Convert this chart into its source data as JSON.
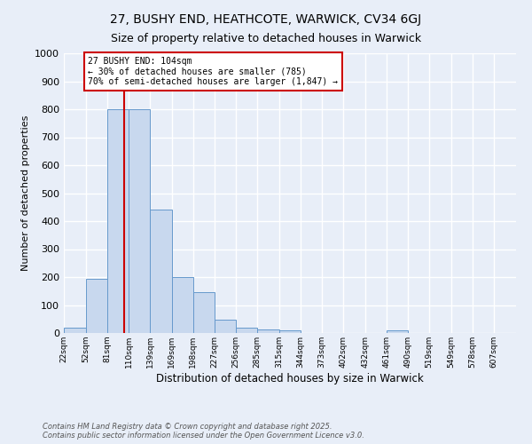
{
  "title": "27, BUSHY END, HEATHCOTE, WARWICK, CV34 6GJ",
  "subtitle": "Size of property relative to detached houses in Warwick",
  "xlabel": "Distribution of detached houses by size in Warwick",
  "ylabel": "Number of detached properties",
  "bin_labels": [
    "22sqm",
    "52sqm",
    "81sqm",
    "110sqm",
    "139sqm",
    "169sqm",
    "198sqm",
    "227sqm",
    "256sqm",
    "285sqm",
    "315sqm",
    "344sqm",
    "373sqm",
    "402sqm",
    "432sqm",
    "461sqm",
    "490sqm",
    "519sqm",
    "549sqm",
    "578sqm",
    "607sqm"
  ],
  "bin_edges": [
    22,
    52,
    81,
    110,
    139,
    169,
    198,
    227,
    256,
    285,
    315,
    344,
    373,
    402,
    432,
    461,
    490,
    519,
    549,
    578,
    607
  ],
  "bar_heights": [
    20,
    195,
    800,
    800,
    440,
    200,
    145,
    48,
    18,
    12,
    10,
    0,
    0,
    0,
    0,
    8,
    0,
    0,
    0,
    0
  ],
  "bar_color": "#c8d8ee",
  "bar_edge_color": "#6699cc",
  "vline_x": 104,
  "vline_color": "#cc0000",
  "annotation_text": "27 BUSHY END: 104sqm\n← 30% of detached houses are smaller (785)\n70% of semi-detached houses are larger (1,847) →",
  "annotation_box_color": "#ffffff",
  "annotation_box_edge": "#cc0000",
  "ylim": [
    0,
    1000
  ],
  "yticks": [
    0,
    100,
    200,
    300,
    400,
    500,
    600,
    700,
    800,
    900,
    1000
  ],
  "background_color": "#e8eef8",
  "footer_text": "Contains HM Land Registry data © Crown copyright and database right 2025.\nContains public sector information licensed under the Open Government Licence v3.0.",
  "grid_color": "#ffffff",
  "title_fontsize": 10,
  "subtitle_fontsize": 9
}
